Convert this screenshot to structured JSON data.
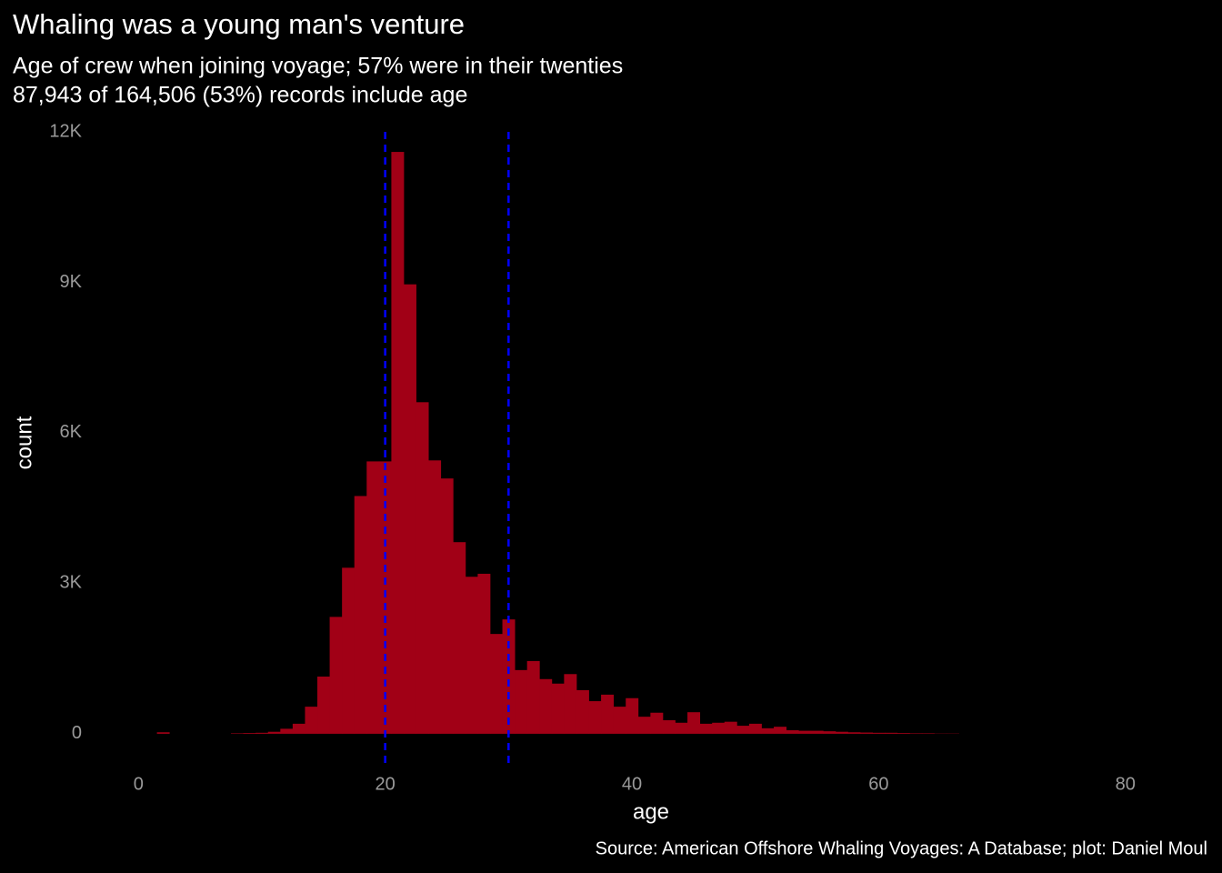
{
  "chart_data": {
    "type": "histogram",
    "title": "Whaling was a young man's venture",
    "subtitle": [
      "Age of crew when joining voyage; 57% were in their twenties",
      "87,943 of 164,506 (53%) records include age"
    ],
    "caption": "Source: American Offshore Whaling Voyages: A Database; plot: Daniel Moul",
    "xlabel": "age",
    "ylabel": "count",
    "color": "#a10016",
    "bins": [
      1.5,
      2.5,
      3.5,
      4.5,
      5.5,
      6.5,
      7.5,
      8.5,
      9.5,
      10.5,
      11.5,
      12.5,
      13.5,
      14.5,
      15.5,
      16.5,
      17.5,
      18.5,
      19.5,
      20.5,
      21.5,
      22.5,
      23.5,
      24.5,
      25.5,
      26.5,
      27.5,
      28.5,
      29.5,
      30.5,
      31.5,
      32.5,
      33.5,
      34.5,
      35.5,
      36.5,
      37.5,
      38.5,
      39.5,
      40.5,
      41.5,
      42.5,
      43.5,
      44.5,
      45.5,
      46.5,
      47.5,
      48.5,
      49.5,
      50.5,
      51.5,
      52.5,
      53.5,
      54.5,
      55.5,
      56.5,
      57.5,
      58.5,
      59.5,
      60.5,
      61.5,
      62.5,
      63.5,
      64.5,
      65.5,
      66.5
    ],
    "counts": [
      30,
      0,
      0,
      0,
      0,
      0,
      10,
      15,
      20,
      40,
      100,
      200,
      540,
      1140,
      2330,
      3310,
      4740,
      5430,
      5430,
      11600,
      8960,
      6610,
      5450,
      5090,
      3820,
      3130,
      3190,
      1990,
      2280,
      1270,
      1450,
      1090,
      1000,
      1190,
      870,
      650,
      780,
      540,
      710,
      340,
      420,
      270,
      220,
      430,
      200,
      220,
      240,
      160,
      200,
      110,
      140,
      70,
      60,
      60,
      50,
      40,
      30,
      25,
      20,
      20,
      15,
      10,
      10,
      5,
      5
    ],
    "vlines": [
      20,
      30
    ],
    "vline_color": "#0000ff",
    "xlim": [
      -4,
      84
    ],
    "ylim": [
      -600,
      12000
    ],
    "xticks": [
      0,
      20,
      40,
      60,
      80
    ],
    "yticks": [
      0,
      {
        "value": 3000,
        "label": "3K"
      },
      {
        "value": 6000,
        "label": "6K"
      },
      {
        "value": 9000,
        "label": "9K"
      },
      {
        "value": 12000,
        "label": "12K"
      }
    ],
    "grid": false
  }
}
